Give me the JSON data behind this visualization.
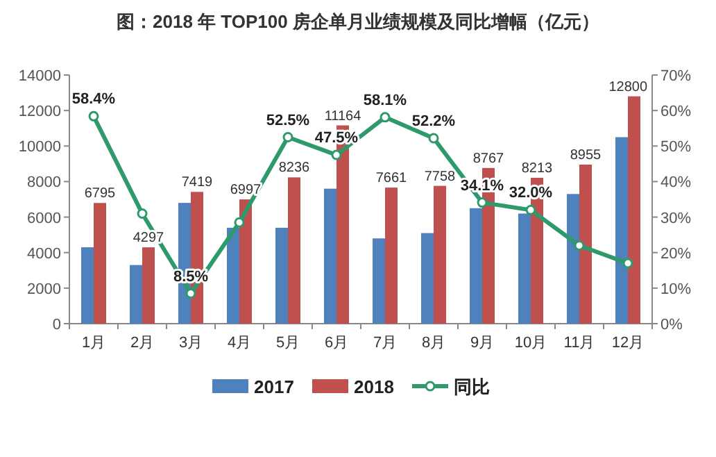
{
  "chart_data": {
    "type": "bar",
    "title": "图：2018 年 TOP100 房企单月业绩规模及同比增幅（亿元）",
    "categories": [
      "1月",
      "2月",
      "3月",
      "4月",
      "5月",
      "6月",
      "7月",
      "8月",
      "9月",
      "10月",
      "11月",
      "12月"
    ],
    "series": [
      {
        "name": "2017",
        "color": "#4f81bd",
        "values": [
          4300,
          3300,
          6800,
          5400,
          5400,
          7600,
          4800,
          5100,
          6500,
          6200,
          7300,
          10500
        ]
      },
      {
        "name": "2018",
        "color": "#c0504d",
        "values": [
          6795,
          4297,
          7419,
          6997,
          8236,
          11164,
          7661,
          7758,
          8767,
          8213,
          8955,
          12800
        ],
        "value_labels": [
          "6795",
          "4297",
          "7419",
          "6997",
          "8236",
          "11164",
          "7661",
          "7758",
          "8767",
          "8213",
          "8955",
          "12800"
        ]
      },
      {
        "name": "同比",
        "type": "line",
        "axis": "y2",
        "color": "#2e9a6c",
        "marker": "circle",
        "values": [
          58.4,
          31,
          8.5,
          28.5,
          52.5,
          47.5,
          58.1,
          52.2,
          34.1,
          32.0,
          22,
          17
        ],
        "value_labels": [
          "58.4%",
          null,
          "8.5%",
          null,
          "52.5%",
          "47.5%",
          "58.1%",
          "52.2%",
          "34.1%",
          "32.0%",
          null,
          null
        ]
      }
    ],
    "ylim": [
      0,
      14000
    ],
    "yticks": [
      0,
      2000,
      4000,
      6000,
      8000,
      10000,
      12000,
      14000
    ],
    "y2lim": [
      0,
      70
    ],
    "y2ticks": [
      {
        "value": 0,
        "label": "0%"
      },
      {
        "value": 10,
        "label": "10%"
      },
      {
        "value": 20,
        "label": "20%"
      },
      {
        "value": 30,
        "label": "30%"
      },
      {
        "value": 40,
        "label": "40%"
      },
      {
        "value": 50,
        "label": "50%"
      },
      {
        "value": 60,
        "label": "60%"
      },
      {
        "value": 70,
        "label": "70%"
      }
    ],
    "legend": "bottom",
    "grid": false
  }
}
